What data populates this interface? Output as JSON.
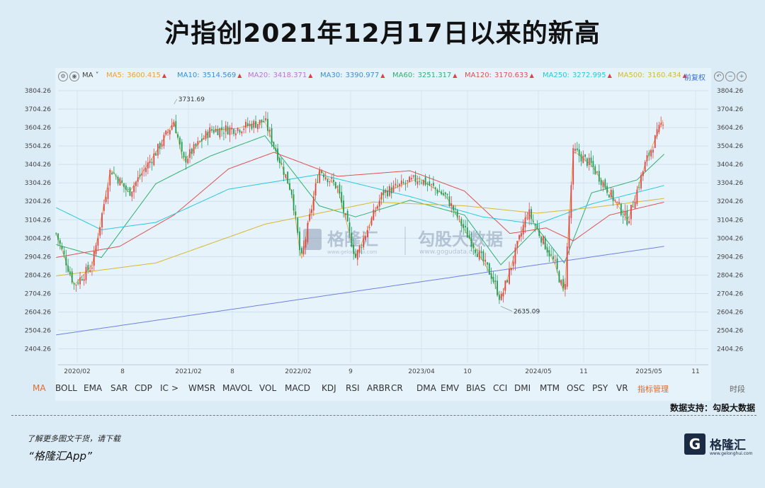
{
  "title": "沪指创2021年12月17日以来的新高",
  "toolbar": {
    "ma_label": "MA",
    "ma_items": [
      {
        "label": "MA5:",
        "value": "3600.415",
        "color": "#f0a030"
      },
      {
        "label": "MA10:",
        "value": "3514.569",
        "color": "#3a8fd8"
      },
      {
        "label": "MA20:",
        "value": "3418.371",
        "color": "#c070d8"
      },
      {
        "label": "MA30:",
        "value": "3390.977",
        "color": "#3a8fd8"
      },
      {
        "label": "MA60:",
        "value": "3251.317",
        "color": "#30b070"
      },
      {
        "label": "MA120:",
        "value": "3170.633",
        "color": "#e05050"
      },
      {
        "label": "MA250:",
        "value": "3272.995",
        "color": "#28c8e0"
      },
      {
        "label": "MA500:",
        "value": "3160.434",
        "color": "#d8b830"
      }
    ],
    "adjust_label": "前复权"
  },
  "indicators": [
    "MA",
    "BOLL",
    "EMA",
    "SAR",
    "CDP",
    "IC",
    ">",
    "WMSR",
    "MAVOL",
    "VOL",
    "MACD",
    "KDJ",
    "RSI",
    "ARBR",
    "CR",
    "DMA",
    "EMV",
    "BIAS",
    "CCI",
    "DMI",
    "MTM",
    "OSC",
    "PSY",
    "VR",
    "指标管理",
    "时段"
  ],
  "watermark": {
    "brand": "格隆汇",
    "brand_url": "www.gelonghui.com",
    "source": "勾股大数据",
    "source_url": "www.gogudata.com"
  },
  "support_text": "数据支持：勾股大数据",
  "footer_line1": "了解更多图文干货，请下载",
  "footer_line2": "“格隆汇App”",
  "logo": {
    "mark": "G",
    "name": "格隆汇",
    "url": "www.gelonghui.com"
  },
  "chart_data": {
    "type": "candlestick",
    "y_ticks": [
      3804.26,
      3704.26,
      3604.26,
      3504.26,
      3404.26,
      3304.26,
      3204.26,
      3104.26,
      3004.26,
      2904.26,
      2804.26,
      2704.26,
      2604.26,
      2504.26,
      2404.26
    ],
    "ylim": [
      2344.26,
      3844.26
    ],
    "x_ticks": [
      "2020/02",
      "8",
      "2021/02",
      "8",
      "2022/02",
      "9",
      "2023/04",
      "10",
      "2024/05",
      "11",
      "2025/05",
      "11"
    ],
    "annotations": [
      {
        "text": "3731.69",
        "x": "2021/02",
        "y": 3731.69
      },
      {
        "text": "2635.09",
        "x": "2024/02",
        "y": 2635.09
      }
    ],
    "close_path": [
      [
        "2020/01",
        3030
      ],
      [
        "2020/03",
        2750
      ],
      [
        "2020/05",
        2860
      ],
      [
        "2020/07",
        3380
      ],
      [
        "2020/09",
        3250
      ],
      [
        "2020/12",
        3470
      ],
      [
        "2021/02",
        3640
      ],
      [
        "2021/03",
        3420
      ],
      [
        "2021/06",
        3590
      ],
      [
        "2021/09",
        3600
      ],
      [
        "2021/12",
        3640
      ],
      [
        "2022/03",
        3250
      ],
      [
        "2022/04",
        2880
      ],
      [
        "2022/06",
        3380
      ],
      [
        "2022/08",
        3280
      ],
      [
        "2022/10",
        2900
      ],
      [
        "2023/01",
        3250
      ],
      [
        "2023/05",
        3330
      ],
      [
        "2023/08",
        3230
      ],
      [
        "2023/10",
        3050
      ],
      [
        "2024/01",
        2800
      ],
      [
        "2024/02",
        2670
      ],
      [
        "2024/05",
        3150
      ],
      [
        "2024/08",
        2860
      ],
      [
        "2024/09",
        2700
      ],
      [
        "2024/10",
        3480
      ],
      [
        "2024/12",
        3400
      ],
      [
        "2025/04",
        3100
      ],
      [
        "2025/06",
        3420
      ],
      [
        "2025/08",
        3660
      ]
    ],
    "ma_lines": [
      {
        "name": "MA60",
        "color": "#30b070",
        "points": [
          [
            "2020/01",
            2970
          ],
          [
            "2020/06",
            2900
          ],
          [
            "2020/12",
            3300
          ],
          [
            "2021/06",
            3450
          ],
          [
            "2021/12",
            3560
          ],
          [
            "2022/06",
            3180
          ],
          [
            "2022/10",
            3120
          ],
          [
            "2023/04",
            3210
          ],
          [
            "2023/10",
            3130
          ],
          [
            "2024/02",
            2860
          ],
          [
            "2024/06",
            3060
          ],
          [
            "2024/09",
            2870
          ],
          [
            "2024/12",
            3250
          ],
          [
            "2025/05",
            3320
          ],
          [
            "2025/08",
            3460
          ]
        ]
      },
      {
        "name": "MA120",
        "color": "#e05050",
        "points": [
          [
            "2020/01",
            2900
          ],
          [
            "2020/08",
            2960
          ],
          [
            "2021/02",
            3130
          ],
          [
            "2021/08",
            3380
          ],
          [
            "2022/01",
            3470
          ],
          [
            "2022/08",
            3340
          ],
          [
            "2023/04",
            3370
          ],
          [
            "2023/10",
            3260
          ],
          [
            "2024/03",
            3030
          ],
          [
            "2024/07",
            3060
          ],
          [
            "2024/10",
            2990
          ],
          [
            "2025/02",
            3130
          ],
          [
            "2025/08",
            3200
          ]
        ]
      },
      {
        "name": "MA250",
        "color": "#28c8e0",
        "points": [
          [
            "2020/01",
            3170
          ],
          [
            "2020/06",
            3050
          ],
          [
            "2020/12",
            3090
          ],
          [
            "2021/08",
            3270
          ],
          [
            "2022/06",
            3350
          ],
          [
            "2023/04",
            3230
          ],
          [
            "2023/12",
            3120
          ],
          [
            "2024/06",
            3080
          ],
          [
            "2024/12",
            3190
          ],
          [
            "2025/08",
            3290
          ]
        ]
      },
      {
        "name": "MA500",
        "color": "#d8b830",
        "points": [
          [
            "2020/01",
            2800
          ],
          [
            "2020/12",
            2870
          ],
          [
            "2021/12",
            3080
          ],
          [
            "2022/12",
            3200
          ],
          [
            "2023/10",
            3180
          ],
          [
            "2024/06",
            3140
          ],
          [
            "2024/12",
            3170
          ],
          [
            "2025/08",
            3220
          ]
        ]
      },
      {
        "name": "Trend",
        "color": "#7080e0",
        "points": [
          [
            "2020/01",
            2480
          ],
          [
            "2025/08",
            2960
          ]
        ]
      }
    ]
  }
}
